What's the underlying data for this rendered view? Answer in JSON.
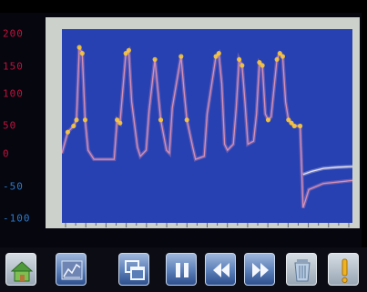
{
  "y_axis": {
    "ticks": [
      {
        "label": "200",
        "value": 200
      },
      {
        "label": "150",
        "value": 150
      },
      {
        "label": "100",
        "value": 100
      },
      {
        "label": "50",
        "value": 50
      },
      {
        "label": "0",
        "value": 0
      },
      {
        "label": "-50",
        "value": -50
      },
      {
        "label": "-100",
        "value": -100
      }
    ]
  },
  "colors": {
    "plot_background": "#2741b2",
    "trace_core": "#d68fb4",
    "trace_hot": "#ffcc33",
    "trace_tail": "#e8e2ee",
    "positive_label": "#c0123d",
    "negative_label": "#2f79c9"
  },
  "chart_data": {
    "type": "line",
    "ylim": [
      -110,
      210
    ],
    "xlim": [
      0,
      100
    ],
    "series": [
      {
        "values": [
          [
            0,
            5
          ],
          [
            2,
            40
          ],
          [
            4,
            50
          ],
          [
            5,
            60
          ],
          [
            6,
            180
          ],
          [
            7,
            170
          ],
          [
            8,
            60
          ],
          [
            9,
            10
          ],
          [
            11,
            -5
          ],
          [
            18,
            -5
          ],
          [
            19,
            60
          ],
          [
            20,
            55
          ],
          [
            22,
            170
          ],
          [
            23,
            175
          ],
          [
            24,
            90
          ],
          [
            26,
            15
          ],
          [
            27,
            0
          ],
          [
            29,
            10
          ],
          [
            30,
            75
          ],
          [
            32,
            160
          ],
          [
            34,
            60
          ],
          [
            36,
            10
          ],
          [
            37,
            5
          ],
          [
            38,
            80
          ],
          [
            41,
            165
          ],
          [
            42,
            110
          ],
          [
            43,
            60
          ],
          [
            45,
            15
          ],
          [
            46,
            -5
          ],
          [
            49,
            0
          ],
          [
            50,
            70
          ],
          [
            53,
            165
          ],
          [
            54,
            170
          ],
          [
            55,
            120
          ],
          [
            56,
            20
          ],
          [
            57,
            10
          ],
          [
            59,
            20
          ],
          [
            60,
            80
          ],
          [
            61,
            160
          ],
          [
            62,
            150
          ],
          [
            63,
            90
          ],
          [
            64,
            20
          ],
          [
            66,
            25
          ],
          [
            67,
            70
          ],
          [
            68,
            155
          ],
          [
            69,
            150
          ],
          [
            70,
            70
          ],
          [
            71,
            60
          ],
          [
            72,
            65
          ],
          [
            74,
            160
          ],
          [
            75,
            170
          ],
          [
            76,
            165
          ],
          [
            77,
            90
          ],
          [
            78,
            60
          ],
          [
            79,
            55
          ],
          [
            80,
            50
          ],
          [
            82,
            50
          ],
          [
            83,
            -85
          ],
          [
            84,
            -70
          ],
          [
            85,
            -55
          ],
          [
            90,
            -45
          ],
          [
            100,
            -40
          ]
        ]
      },
      {
        "values": [
          [
            83,
            -30
          ],
          [
            86,
            -25
          ],
          [
            90,
            -20
          ],
          [
            95,
            -18
          ],
          [
            100,
            -17
          ]
        ]
      }
    ]
  },
  "toolbar": {
    "buttons": [
      {
        "icon": "home-icon"
      },
      {
        "icon": "chart-icon"
      },
      {
        "icon": "window-icon"
      },
      {
        "icon": "pause-icon"
      },
      {
        "icon": "rewind-icon"
      },
      {
        "icon": "fast-forward-icon"
      },
      {
        "icon": "trash-icon"
      },
      {
        "icon": "exclamation-icon"
      }
    ]
  }
}
